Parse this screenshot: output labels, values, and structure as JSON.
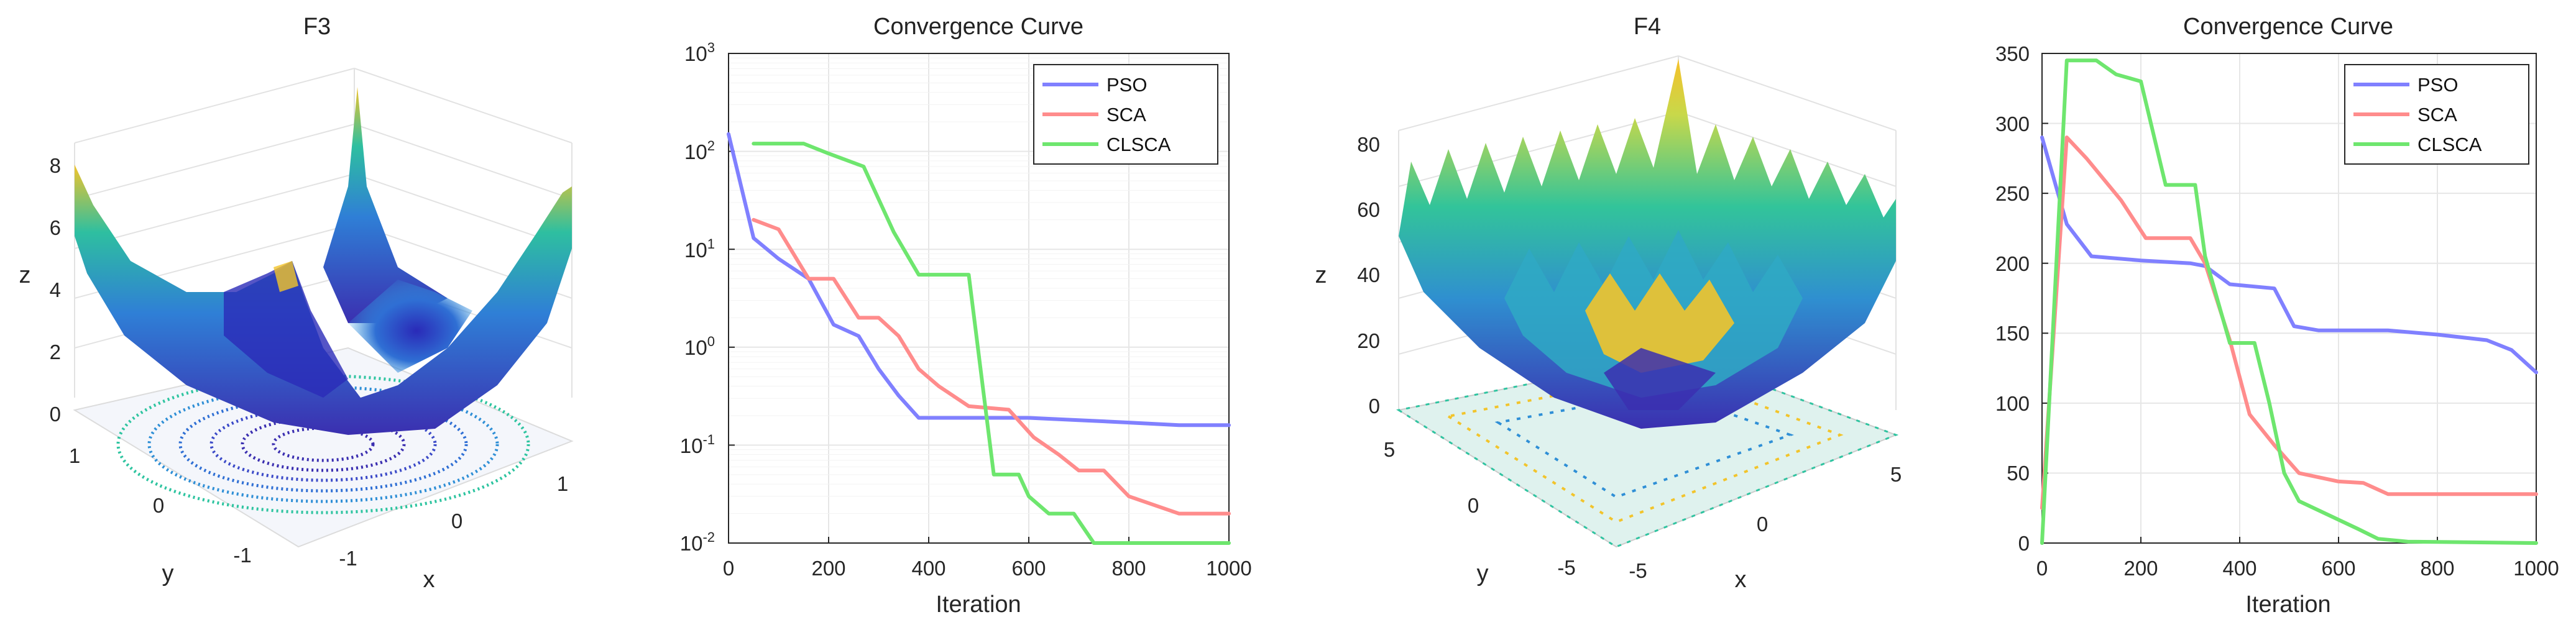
{
  "palette": {
    "pso": "#8080ff",
    "sca": "#ff8c8c",
    "clsca": "#6ee66e",
    "axis": "#262626",
    "grid": "#e6e6e6",
    "surface_low": "#3b2fb0",
    "surface_mid": "#2eb5a6",
    "surface_high": "#f2c42b"
  },
  "surface_f3": {
    "title": "F3",
    "xlabel": "x",
    "ylabel": "y",
    "zlabel": "z",
    "zticks": [
      "0",
      "2",
      "4",
      "6",
      "8"
    ],
    "xticks": [
      "-1",
      "0",
      "1"
    ],
    "yticks": [
      "-1",
      "0",
      "1"
    ]
  },
  "surface_f4": {
    "title": "F4",
    "xlabel": "x",
    "ylabel": "y",
    "zlabel": "z",
    "zticks": [
      "0",
      "20",
      "40",
      "60",
      "80"
    ],
    "xticks": [
      "-5",
      "0",
      "5"
    ],
    "yticks": [
      "-5",
      "0",
      "5"
    ]
  },
  "chart_data": [
    {
      "type": "line",
      "title": "Convergence Curve",
      "xlabel": "Iteration",
      "ylabel": "",
      "yscale": "log",
      "xlim": [
        0,
        1000
      ],
      "ylim": [
        0.01,
        1000
      ],
      "xticks": [
        "0",
        "200",
        "400",
        "600",
        "800",
        "1000"
      ],
      "yticks": [
        {
          "base": "10",
          "exp": "-2"
        },
        {
          "base": "10",
          "exp": "-1"
        },
        {
          "base": "10",
          "exp": "0"
        },
        {
          "base": "10",
          "exp": "1"
        },
        {
          "base": "10",
          "exp": "2"
        },
        {
          "base": "10",
          "exp": "3"
        }
      ],
      "grid": true,
      "legend_position": "top-right",
      "series": [
        {
          "name": "PSO",
          "x": [
            0,
            50,
            100,
            160,
            210,
            260,
            300,
            340,
            380,
            600,
            700,
            800,
            900,
            1000
          ],
          "y": [
            150,
            13,
            8,
            5,
            1.7,
            1.3,
            0.6,
            0.32,
            0.19,
            0.19,
            0.18,
            0.17,
            0.16,
            0.16
          ]
        },
        {
          "name": "SCA",
          "x": [
            50,
            100,
            160,
            210,
            260,
            300,
            340,
            380,
            420,
            480,
            560,
            610,
            660,
            700,
            750,
            800,
            900,
            1000
          ],
          "y": [
            20,
            16,
            5,
            5,
            2,
            2,
            1.3,
            0.6,
            0.4,
            0.25,
            0.23,
            0.12,
            0.08,
            0.055,
            0.055,
            0.03,
            0.02,
            0.02
          ]
        },
        {
          "name": "CLSCA",
          "x": [
            50,
            150,
            200,
            270,
            330,
            380,
            480,
            530,
            580,
            600,
            640,
            690,
            730,
            1000
          ],
          "y": [
            120,
            120,
            95,
            70,
            15,
            5.5,
            5.5,
            0.05,
            0.05,
            0.03,
            0.02,
            0.02,
            0.01,
            0.01
          ]
        }
      ]
    },
    {
      "type": "line",
      "title": "Convergence Curve",
      "xlabel": "Iteration",
      "ylabel": "",
      "yscale": "linear",
      "xlim": [
        0,
        1000
      ],
      "ylim": [
        0,
        350
      ],
      "xticks": [
        "0",
        "200",
        "400",
        "600",
        "800",
        "1000"
      ],
      "yticks": [
        "0",
        "50",
        "100",
        "150",
        "200",
        "250",
        "300",
        "350"
      ],
      "grid": true,
      "legend_position": "top-right",
      "series": [
        {
          "name": "PSO",
          "x": [
            0,
            50,
            100,
            200,
            300,
            330,
            380,
            470,
            510,
            560,
            700,
            800,
            900,
            950,
            1000
          ],
          "y": [
            290,
            228,
            205,
            202,
            200,
            198,
            185,
            182,
            155,
            152,
            152,
            149,
            145,
            138,
            122
          ]
        },
        {
          "name": "SCA",
          "x": [
            0,
            50,
            90,
            160,
            210,
            300,
            330,
            380,
            420,
            470,
            520,
            600,
            650,
            700,
            750,
            900,
            1000
          ],
          "y": [
            25,
            290,
            275,
            245,
            218,
            218,
            200,
            145,
            92,
            70,
            50,
            44,
            43,
            35,
            35,
            35,
            35
          ]
        },
        {
          "name": "CLSCA",
          "x": [
            0,
            50,
            110,
            150,
            200,
            250,
            310,
            330,
            380,
            430,
            460,
            490,
            520,
            580,
            640,
            680,
            740,
            1000
          ],
          "y": [
            0,
            345,
            345,
            335,
            330,
            256,
            256,
            205,
            143,
            143,
            100,
            50,
            30,
            20,
            10,
            3,
            1,
            0
          ]
        }
      ]
    }
  ]
}
